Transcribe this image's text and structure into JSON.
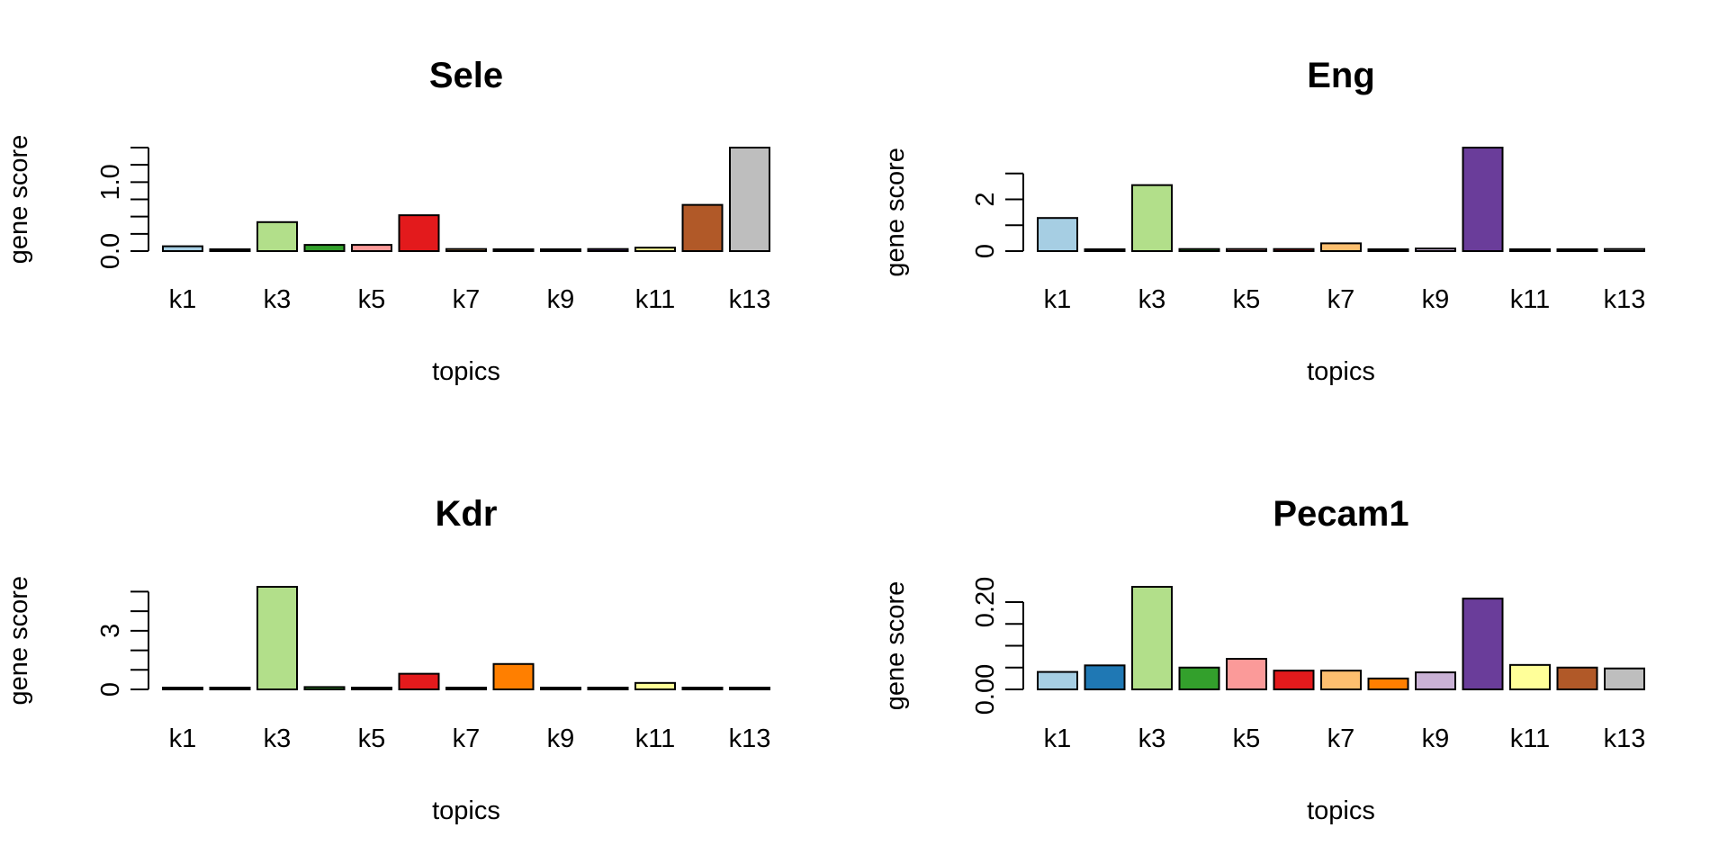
{
  "chart_data": [
    {
      "type": "bar",
      "title": "Sele",
      "xlabel": "topics",
      "ylabel": "gene score",
      "categories": [
        "k1",
        "k2",
        "k3",
        "k4",
        "k5",
        "k6",
        "k7",
        "k8",
        "k9",
        "k10",
        "k11",
        "k12",
        "k13"
      ],
      "category_labels_shown": [
        "k1",
        "k3",
        "k5",
        "k7",
        "k9",
        "k11",
        "k13"
      ],
      "values": [
        0.07,
        0.02,
        0.42,
        0.09,
        0.09,
        0.52,
        0.03,
        0.02,
        0.02,
        0.03,
        0.05,
        0.67,
        1.5
      ],
      "colors": [
        "#A6CEE3",
        "#1F78B4",
        "#B2DF8A",
        "#33A02C",
        "#FB9A99",
        "#E31A1C",
        "#FDBF6F",
        "#FF7F00",
        "#CAB2D6",
        "#6A3D9A",
        "#FFFF99",
        "#B15928",
        "#BEBEBE"
      ],
      "ylim": [
        0,
        1.5
      ],
      "yticks": [
        0.0,
        0.25,
        0.5,
        0.75,
        1.0,
        1.25,
        1.5
      ],
      "ytick_labels": [
        {
          "value": 0.0,
          "label": "0.0"
        },
        {
          "value": 1.0,
          "label": "1.0"
        }
      ]
    },
    {
      "type": "bar",
      "title": "Eng",
      "xlabel": "topics",
      "ylabel": "gene score",
      "categories": [
        "k1",
        "k2",
        "k3",
        "k4",
        "k5",
        "k6",
        "k7",
        "k8",
        "k9",
        "k10",
        "k11",
        "k12",
        "k13"
      ],
      "category_labels_shown": [
        "k1",
        "k3",
        "k5",
        "k7",
        "k9",
        "k11",
        "k13"
      ],
      "values": [
        1.28,
        0.04,
        2.55,
        0.08,
        0.08,
        0.08,
        0.3,
        0.04,
        0.1,
        4.0,
        0.05,
        0.05,
        0.08
      ],
      "colors": [
        "#A6CEE3",
        "#1F78B4",
        "#B2DF8A",
        "#33A02C",
        "#FB9A99",
        "#E31A1C",
        "#FDBF6F",
        "#FF7F00",
        "#CAB2D6",
        "#6A3D9A",
        "#FFFF99",
        "#B15928",
        "#BEBEBE"
      ],
      "ylim": [
        0,
        4.0
      ],
      "yticks": [
        0,
        1,
        2,
        3
      ],
      "ytick_labels": [
        {
          "value": 0,
          "label": "0"
        },
        {
          "value": 2,
          "label": "2"
        }
      ]
    },
    {
      "type": "bar",
      "title": "Kdr",
      "xlabel": "topics",
      "ylabel": "gene score",
      "categories": [
        "k1",
        "k2",
        "k3",
        "k4",
        "k5",
        "k6",
        "k7",
        "k8",
        "k9",
        "k10",
        "k11",
        "k12",
        "k13"
      ],
      "category_labels_shown": [
        "k1",
        "k3",
        "k5",
        "k7",
        "k9",
        "k11",
        "k13"
      ],
      "values": [
        0.05,
        0.04,
        5.25,
        0.12,
        0.06,
        0.8,
        0.04,
        1.3,
        0.04,
        0.04,
        0.33,
        0.05,
        0.03
      ],
      "colors": [
        "#A6CEE3",
        "#1F78B4",
        "#B2DF8A",
        "#33A02C",
        "#FB9A99",
        "#E31A1C",
        "#FDBF6F",
        "#FF7F00",
        "#CAB2D6",
        "#6A3D9A",
        "#FFFF99",
        "#B15928",
        "#BEBEBE"
      ],
      "ylim": [
        0,
        5.25
      ],
      "yticks": [
        0,
        1,
        2,
        3,
        4,
        5
      ],
      "ytick_labels": [
        {
          "value": 0,
          "label": "0"
        },
        {
          "value": 3,
          "label": "3"
        }
      ]
    },
    {
      "type": "bar",
      "title": "Pecam1",
      "xlabel": "topics",
      "ylabel": "gene score",
      "categories": [
        "k1",
        "k2",
        "k3",
        "k4",
        "k5",
        "k6",
        "k7",
        "k8",
        "k9",
        "k10",
        "k11",
        "k12",
        "k13"
      ],
      "category_labels_shown": [
        "k1",
        "k3",
        "k5",
        "k7",
        "k9",
        "k11",
        "k13"
      ],
      "values": [
        0.04,
        0.055,
        0.235,
        0.05,
        0.07,
        0.043,
        0.043,
        0.025,
        0.039,
        0.208,
        0.056,
        0.05,
        0.048
      ],
      "colors": [
        "#A6CEE3",
        "#1F78B4",
        "#B2DF8A",
        "#33A02C",
        "#FB9A99",
        "#E31A1C",
        "#FDBF6F",
        "#FF7F00",
        "#CAB2D6",
        "#6A3D9A",
        "#FFFF99",
        "#B15928",
        "#BEBEBE"
      ],
      "ylim": [
        0,
        0.235
      ],
      "yticks": [
        0.0,
        0.05,
        0.1,
        0.15,
        0.2
      ],
      "ytick_labels": [
        {
          "value": 0.0,
          "label": "0.00"
        },
        {
          "value": 0.2,
          "label": "0.20"
        }
      ]
    }
  ]
}
